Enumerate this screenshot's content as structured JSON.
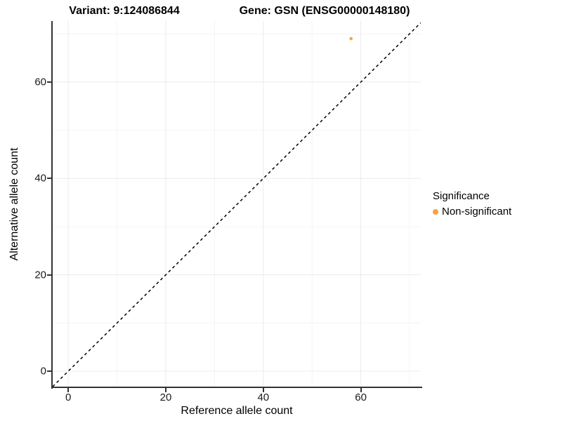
{
  "titles": {
    "variant": "Variant: 9:124086844",
    "gene": "Gene: GSN (ENSG00000148180)"
  },
  "chart_data": {
    "type": "scatter",
    "xlabel": "Reference allele count",
    "ylabel": "Alternative allele count",
    "xlim": [
      -3.2,
      72.3
    ],
    "ylim": [
      -3.35,
      72.65
    ],
    "x_ticks": [
      0,
      20,
      40,
      60
    ],
    "y_ticks": [
      0,
      20,
      40,
      60
    ],
    "x_minor_ticks": [
      10,
      30,
      50,
      70
    ],
    "y_minor_ticks": [
      10,
      30,
      50,
      70
    ],
    "grid": true,
    "points": [
      {
        "x": 58,
        "y": 69,
        "series": "Non-significant"
      }
    ],
    "ref_line": {
      "kind": "identity",
      "slope": 1,
      "intercept": 0,
      "style": "dashed"
    },
    "legend": {
      "title": "Significance",
      "position": "right",
      "items": [
        {
          "label": "Non-significant",
          "color": "#F9A242"
        }
      ]
    }
  },
  "colors": {
    "point": "#F9A242",
    "axis": "#333333",
    "grid_major": "#ebebeb",
    "grid_minor": "#f4f4f4",
    "ref_line": "#000000"
  }
}
